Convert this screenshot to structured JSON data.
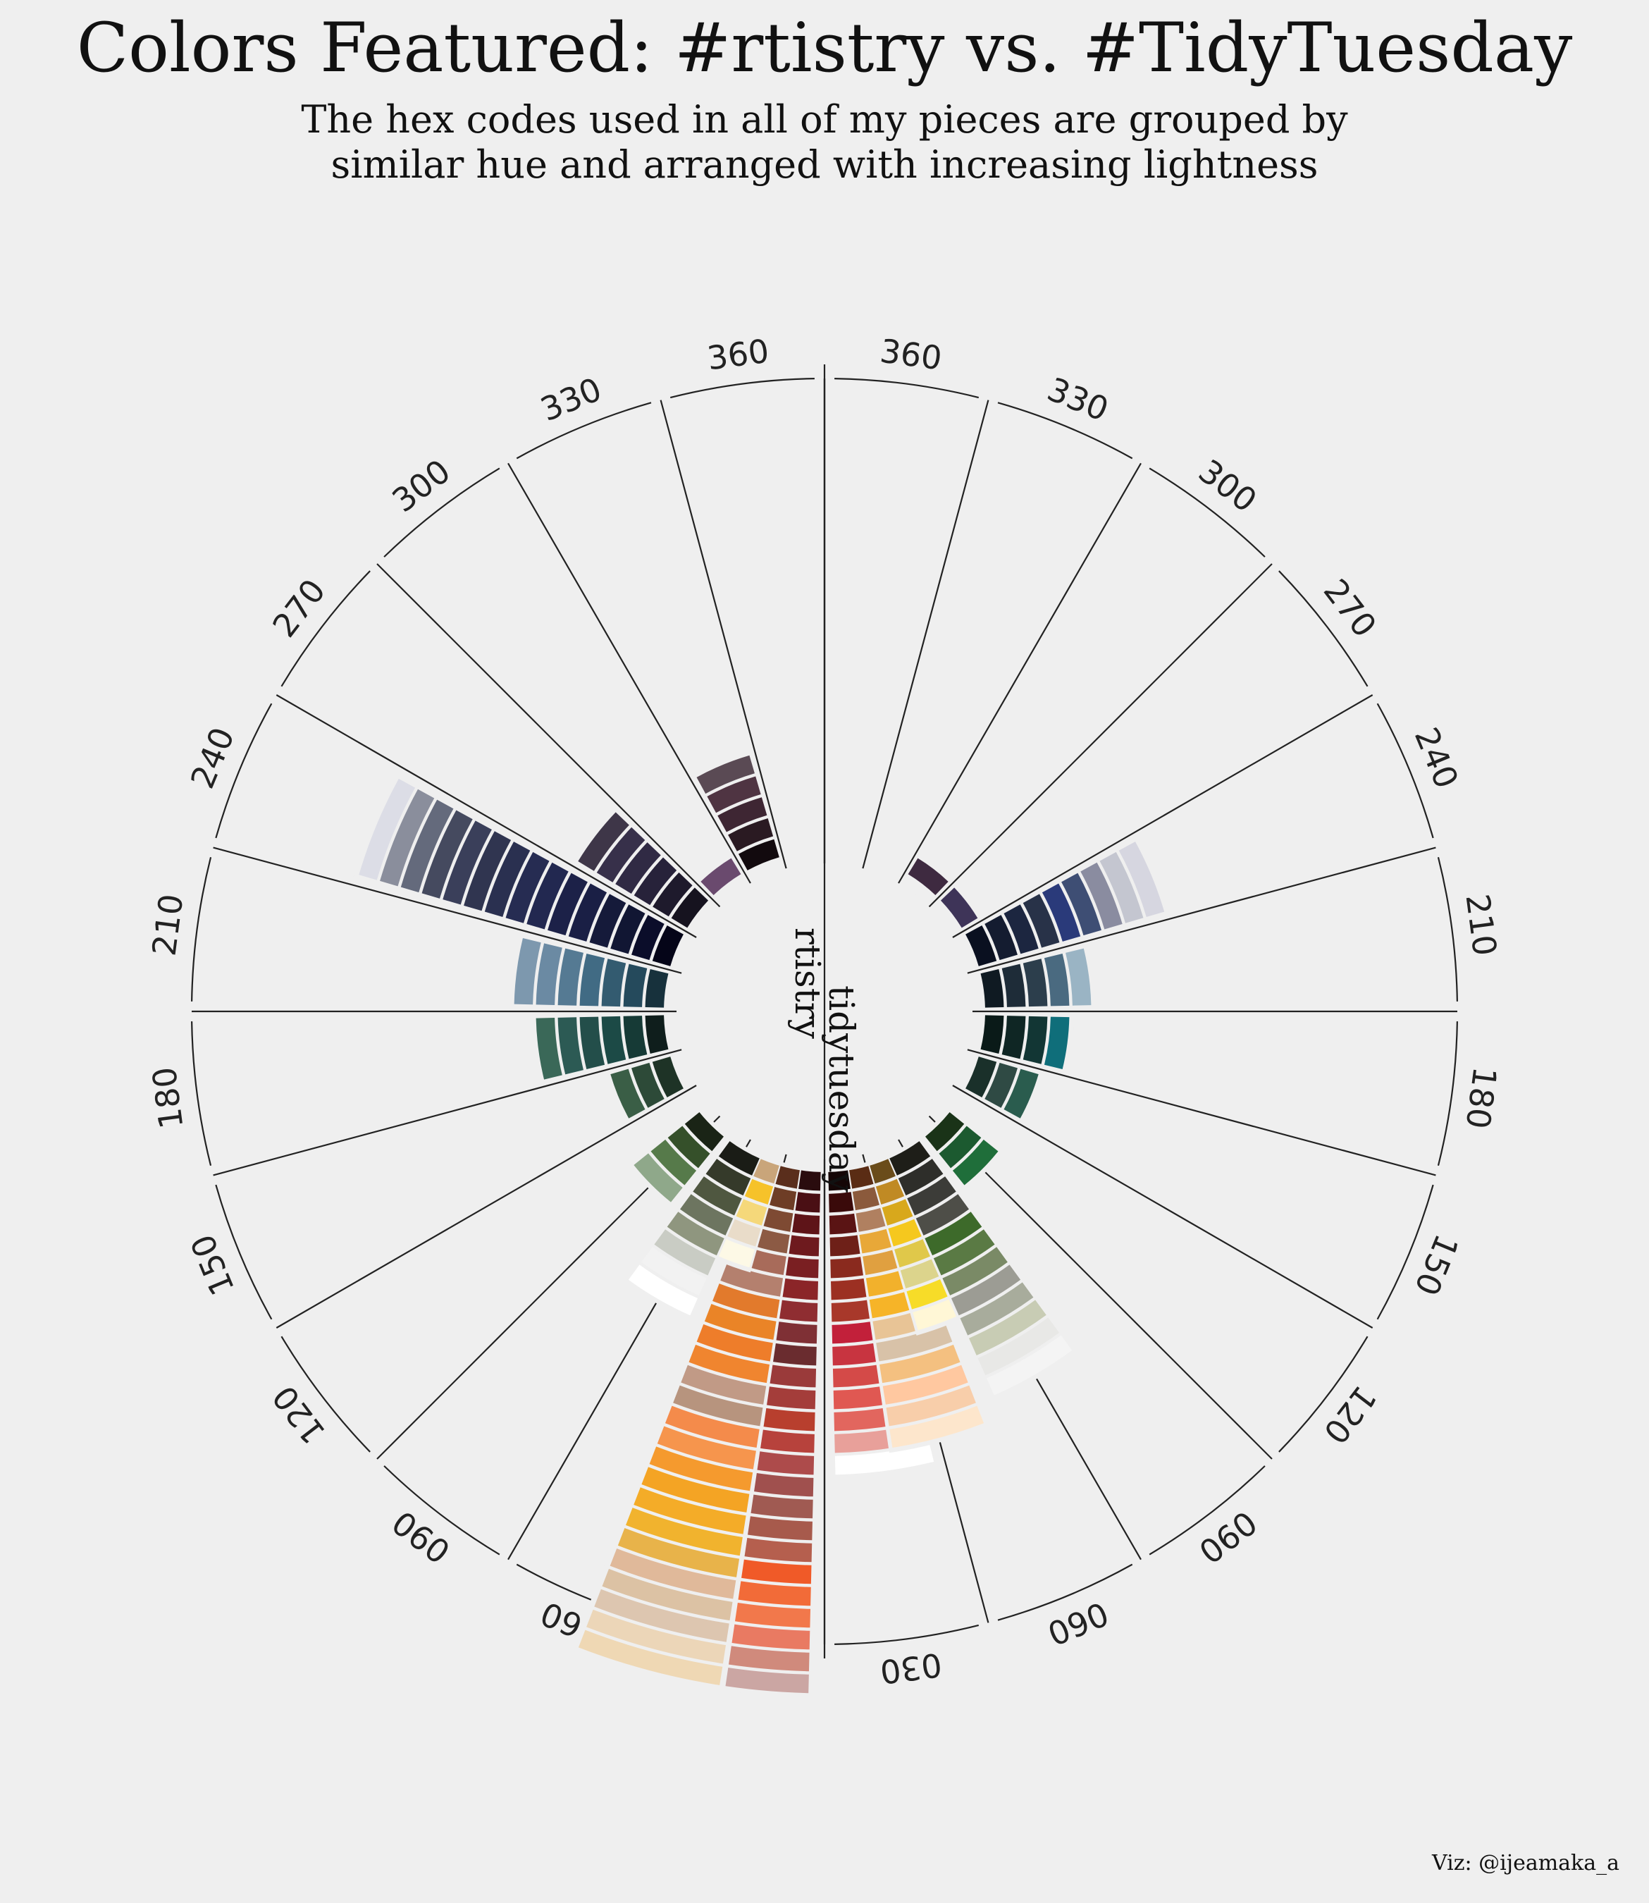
{
  "title": "Colors Featured: #rtistry vs. #TidyTuesday",
  "subtitle_line1": "The hex codes used in all of my pieces are grouped by",
  "subtitle_line2": "similar hue and arranged with increasing lightness",
  "caption": "Viz: @ijeamaka_a",
  "chart_data": {
    "type": "bar",
    "description_note": "mirrored circular stacked bar chart of hex colors binned by hue (15-degree bins), stacked by increasing lightness",
    "axis_tick_labels": [
      "030",
      "060",
      "090",
      "120",
      "150",
      "180",
      "210",
      "240",
      "270",
      "300",
      "330",
      "360"
    ],
    "series": [
      {
        "name": "rtistry",
        "bins": [
          {
            "hue": 15,
            "colors": [
              "#2a0c0e",
              "#4a0f14",
              "#5e1418",
              "#6e1a1e",
              "#7a1f22",
              "#8b2528",
              "#8f2d31",
              "#7f3035",
              "#6a2c2f",
              "#9a3a3a",
              "#a43d3a",
              "#b83f2e",
              "#b7423c",
              "#ad4b4b",
              "#a0504e",
              "#a05a52",
              "#a75a4c",
              "#b55f4e",
              "#f05a28",
              "#f26b38",
              "#f2784b",
              "#e97a62",
              "#d08a7c",
              "#cba6a3"
            ]
          },
          {
            "hue": 30,
            "colors": [
              "#5a2e1c",
              "#6e3d26",
              "#7e4a33",
              "#8c5a44",
              "#a86b5a",
              "#b4806e",
              "#e27a2c",
              "#ea8427",
              "#ee7d2a",
              "#f0852f",
              "#c19a86",
              "#b7947e",
              "#f48b4b",
              "#f6954d",
              "#f59a2e",
              "#f4a424",
              "#f4ac28",
              "#f1b32e",
              "#e8b34a",
              "#e0b99a",
              "#dcc2a4",
              "#ddc6b0",
              "#ecd6b8",
              "#efd8b4"
            ]
          },
          {
            "hue": 45,
            "colors": [
              "#c9a57a",
              "#f6c22a",
              "#f5d87a",
              "#e9dcc9",
              "#fdf9e6"
            ]
          },
          {
            "hue": 60,
            "colors": [
              "#1a1c16",
              "#353a2a",
              "#4f5740",
              "#6d7560",
              "#8f967f",
              "#c9ccc4",
              "#f2f2f2",
              "#ffffff"
            ]
          },
          {
            "hue": 90,
            "colors": [
              "#1a2416",
              "#35502a",
              "#567a4a",
              "#8fa88a"
            ]
          },
          {
            "hue": 135,
            "colors": [
              "#1e3326",
              "#2d4a38",
              "#3a5e46"
            ]
          },
          {
            "hue": 165,
            "colors": [
              "#0f1e1c",
              "#163a36",
              "#1c4a46",
              "#234e4a",
              "#2c5a54",
              "#3a6858"
            ]
          },
          {
            "hue": 195,
            "colors": [
              "#17313c",
              "#254a5c",
              "#335b70",
              "#416b84",
              "#557a93",
              "#6b8aa3",
              "#7d98ae"
            ]
          },
          {
            "hue": 225,
            "colors": [
              "#050518",
              "#0b0d2a",
              "#111633",
              "#151a3a",
              "#1a1f45",
              "#1c2148",
              "#222850",
              "#262c52",
              "#2a3050",
              "#303550",
              "#3a3f5a",
              "#454a5f",
              "#646a7c",
              "#8a8e9c",
              "#dcdde6"
            ]
          },
          {
            "hue": 255,
            "colors": [
              "#16131f",
              "#1e1a2c",
              "#27223a",
              "#302a44",
              "#37304a",
              "#3e3648"
            ]
          },
          {
            "hue": 285,
            "colors": [
              "#6a4a6e"
            ]
          },
          {
            "hue": 315,
            "colors": [
              "#120a0e",
              "#2a1a22",
              "#3e2633",
              "#4f3442",
              "#5a4a54"
            ]
          }
        ]
      },
      {
        "name": "tidytuesday",
        "bins": [
          {
            "hue": 15,
            "colors": [
              "#150606",
              "#3a0a0a",
              "#5a1414",
              "#6e2018",
              "#8a2a1e",
              "#9c3022",
              "#a8382a",
              "#c2203a",
              "#c83440",
              "#d44a48",
              "#e05852",
              "#e2665e",
              "#e8a09a",
              "#ffffff"
            ]
          },
          {
            "hue": 30,
            "colors": [
              "#5a2c14",
              "#8b5a3c",
              "#b08060",
              "#e8a838",
              "#e0a040",
              "#f2b12c",
              "#f6b428",
              "#e8c496",
              "#d8c2a8",
              "#f4c080",
              "#ffc8a0",
              "#f8ceaa",
              "#fde6cc"
            ]
          },
          {
            "hue": 45,
            "colors": [
              "#6a4c1a",
              "#c08a24",
              "#d8a81c",
              "#f5c81e",
              "#e0c84a",
              "#dcd48c",
              "#f7dc28",
              "#fff7d6"
            ]
          },
          {
            "hue": 60,
            "colors": [
              "#1e1e18",
              "#2e2e2a",
              "#3c3c38",
              "#4e4e48",
              "#3d6a2a",
              "#5a7a44",
              "#7a8a66",
              "#9c9c94",
              "#a8ac9c",
              "#c8ccb4",
              "#e8e8e6",
              "#f4f4f4"
            ]
          },
          {
            "hue": 90,
            "colors": [
              "#1a3318",
              "#1c5a30",
              "#1f6e3a"
            ]
          },
          {
            "hue": 135,
            "colors": [
              "#1a302a",
              "#2f4a44",
              "#2a5c4e"
            ]
          },
          {
            "hue": 165,
            "colors": [
              "#0a1a18",
              "#0f2624",
              "#123634",
              "#0f6e7a"
            ]
          },
          {
            "hue": 195,
            "colors": [
              "#0f1a22",
              "#1e2c38",
              "#2c3e4c",
              "#4a6a80",
              "#9ab4c4"
            ]
          },
          {
            "hue": 225,
            "colors": [
              "#0a1020",
              "#141c30",
              "#1c2640",
              "#283248",
              "#2a3a7a",
              "#3e4e74",
              "#8a8ca0",
              "#c4c6d0",
              "#d6d6e0"
            ]
          },
          {
            "hue": 255,
            "colors": [
              "#3e3458"
            ]
          },
          {
            "hue": 285,
            "colors": [
              "#3e2a40"
            ]
          }
        ]
      }
    ],
    "colors": {
      "background": "#efefef",
      "grid": "#222222"
    }
  }
}
